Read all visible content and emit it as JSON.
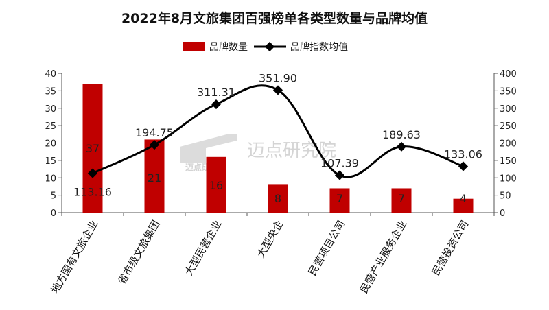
{
  "chart_data": {
    "type": "bar",
    "title": "2022年8月文旅集团百强榜单各类型数量与品牌均值",
    "categories": [
      "地方国有文旅企业",
      "省市级文旅集团",
      "大型民营企业",
      "大型央企",
      "民营项目公司",
      "民营产业服务企业",
      "民营投资公司"
    ],
    "series": [
      {
        "name": "品牌数量",
        "type": "bar",
        "axis": "left",
        "color": "#c00000",
        "values": [
          37,
          21,
          16,
          8,
          7,
          7,
          4
        ]
      },
      {
        "name": "品牌指数均值",
        "type": "line",
        "axis": "right",
        "color": "#000000",
        "values": [
          113.16,
          194.75,
          311.31,
          351.9,
          107.39,
          189.63,
          133.06
        ],
        "labels": [
          "113.16",
          "194.75",
          "311.31",
          "351.90",
          "107.39",
          "189.63",
          "133.06"
        ]
      }
    ],
    "y_left": {
      "range": [
        0,
        40
      ],
      "ticks": [
        0,
        5,
        10,
        15,
        20,
        25,
        30,
        35,
        40
      ]
    },
    "y_right": {
      "range": [
        0,
        400
      ],
      "ticks": [
        0,
        50,
        100,
        150,
        200,
        250,
        300,
        350,
        400
      ]
    },
    "legend": {
      "placement": "top-center",
      "items": [
        "品牌数量",
        "品牌指数均值"
      ]
    },
    "grid": false
  },
  "watermark": {
    "text": "迈点研究院",
    "small_text": "迈点研究院"
  }
}
